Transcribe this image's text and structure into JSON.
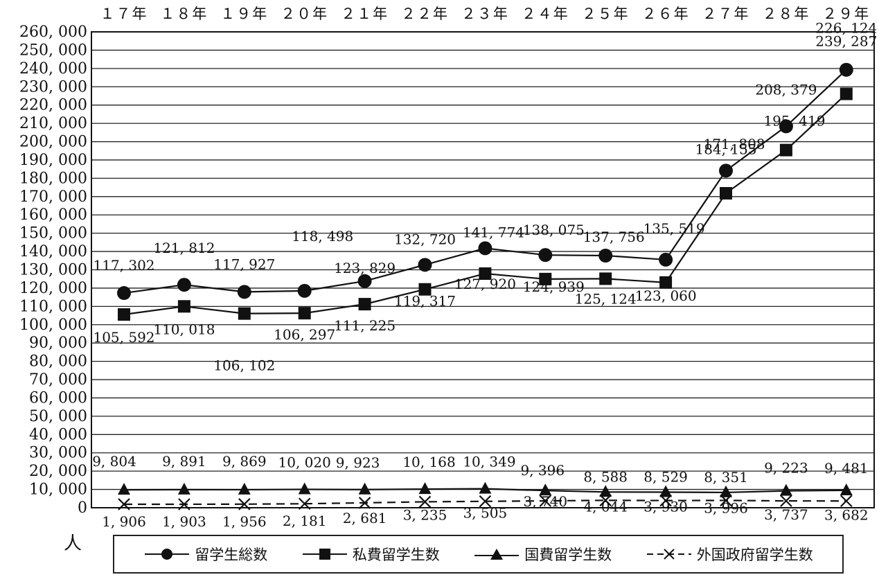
{
  "chart_data": {
    "type": "line",
    "categories": [
      "１７年",
      "１８年",
      "１９年",
      "２０年",
      "２１年",
      "２２年",
      "２３年",
      "２４年",
      "２５年",
      "２６年",
      "２７年",
      "２８年",
      "２９年"
    ],
    "ylim": [
      0,
      260000
    ],
    "y_ticks": [
      "0",
      "10, 000",
      "20, 000",
      "30, 000",
      "40, 000",
      "50, 000",
      "60, 000",
      "70, 000",
      "80, 000",
      "90, 000",
      "100, 000",
      "110, 000",
      "120, 000",
      "130, 000",
      "140, 000",
      "150, 000",
      "160, 000",
      "170, 000",
      "180, 000",
      "190, 000",
      "200, 000",
      "210, 000",
      "220, 000",
      "230, 000",
      "240, 000",
      "250, 000",
      "260, 000"
    ],
    "y_unit": "人",
    "grid": true,
    "legend_position": "bottom",
    "series": [
      {
        "name": "留学生総数",
        "marker": "circle",
        "dash": false,
        "values": [
          117302,
          121812,
          117927,
          118498,
          123829,
          132720,
          141774,
          138075,
          137756,
          135519,
          184155,
          208379,
          239287
        ],
        "labels": [
          "117, 302",
          "121, 812",
          "117, 927",
          "118, 498",
          "123, 829",
          "132, 720",
          "141, 774",
          "138, 075",
          "137, 756",
          "135, 519",
          "184, 155",
          "208, 379",
          "239, 287"
        ]
      },
      {
        "name": "私費留学生数",
        "marker": "square",
        "dash": false,
        "values": [
          105592,
          110018,
          106102,
          106297,
          111225,
          119317,
          127920,
          124939,
          125124,
          123060,
          171808,
          195419,
          226124
        ],
        "labels": [
          "105, 592",
          "110, 018",
          "106, 102",
          "106, 297",
          "111, 225",
          "119, 317",
          "127, 920",
          "124, 939",
          "125, 124",
          "123, 060",
          "171, 808",
          "195, 419",
          "226, 124"
        ]
      },
      {
        "name": "国費留学生数",
        "marker": "triangle",
        "dash": false,
        "values": [
          9804,
          9891,
          9869,
          10020,
          9923,
          10168,
          10349,
          9396,
          8588,
          8529,
          8351,
          9223,
          9481
        ],
        "labels": [
          "9, 804",
          "9, 891",
          "9, 869",
          "10, 020",
          "9, 923",
          "10, 168",
          "10, 349",
          "9, 396",
          "8, 588",
          "8, 529",
          "8, 351",
          "9, 223",
          "9, 481"
        ]
      },
      {
        "name": "外国政府留学生数",
        "marker": "x",
        "dash": true,
        "values": [
          1906,
          1903,
          1956,
          2181,
          2681,
          3235,
          3505,
          3740,
          4044,
          3930,
          3996,
          3737,
          3682
        ],
        "labels": [
          "1, 906",
          "1, 903",
          "1, 956",
          "2, 181",
          "2, 681",
          "3, 235",
          "3, 505",
          "3, 740",
          "4, 044",
          "3, 930",
          "3, 996",
          "3, 737",
          "3, 682"
        ]
      }
    ]
  }
}
